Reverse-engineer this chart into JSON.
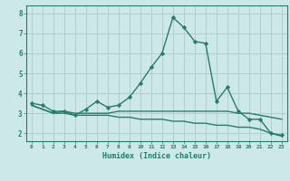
{
  "x": [
    0,
    1,
    2,
    3,
    4,
    5,
    6,
    7,
    8,
    9,
    10,
    11,
    12,
    13,
    14,
    15,
    16,
    17,
    18,
    19,
    20,
    21,
    22,
    23
  ],
  "line1": [
    3.5,
    3.4,
    3.1,
    3.1,
    2.9,
    3.2,
    3.6,
    3.3,
    3.4,
    3.8,
    4.5,
    5.3,
    6.0,
    7.8,
    7.3,
    6.6,
    6.5,
    3.6,
    4.3,
    3.1,
    2.7,
    2.7,
    2.0,
    1.9
  ],
  "line2": [
    3.4,
    3.2,
    3.0,
    3.1,
    3.0,
    3.0,
    3.0,
    3.0,
    3.1,
    3.1,
    3.1,
    3.1,
    3.1,
    3.1,
    3.1,
    3.1,
    3.1,
    3.1,
    3.1,
    3.0,
    3.0,
    2.9,
    2.8,
    2.7
  ],
  "line3": [
    3.4,
    3.2,
    3.0,
    3.0,
    2.9,
    2.9,
    2.9,
    2.9,
    2.8,
    2.8,
    2.7,
    2.7,
    2.7,
    2.6,
    2.6,
    2.5,
    2.5,
    2.4,
    2.4,
    2.3,
    2.3,
    2.2,
    2.0,
    1.85
  ],
  "color": "#267d6e",
  "bg_color": "#cce8e8",
  "grid_color": "#aed0d0",
  "xlabel": "Humidex (Indice chaleur)",
  "ylim": [
    1.6,
    8.4
  ],
  "xlim": [
    -0.5,
    23.5
  ],
  "yticks": [
    2,
    3,
    4,
    5,
    6,
    7,
    8
  ],
  "xticks": [
    0,
    1,
    2,
    3,
    4,
    5,
    6,
    7,
    8,
    9,
    10,
    11,
    12,
    13,
    14,
    15,
    16,
    17,
    18,
    19,
    20,
    21,
    22,
    23
  ]
}
